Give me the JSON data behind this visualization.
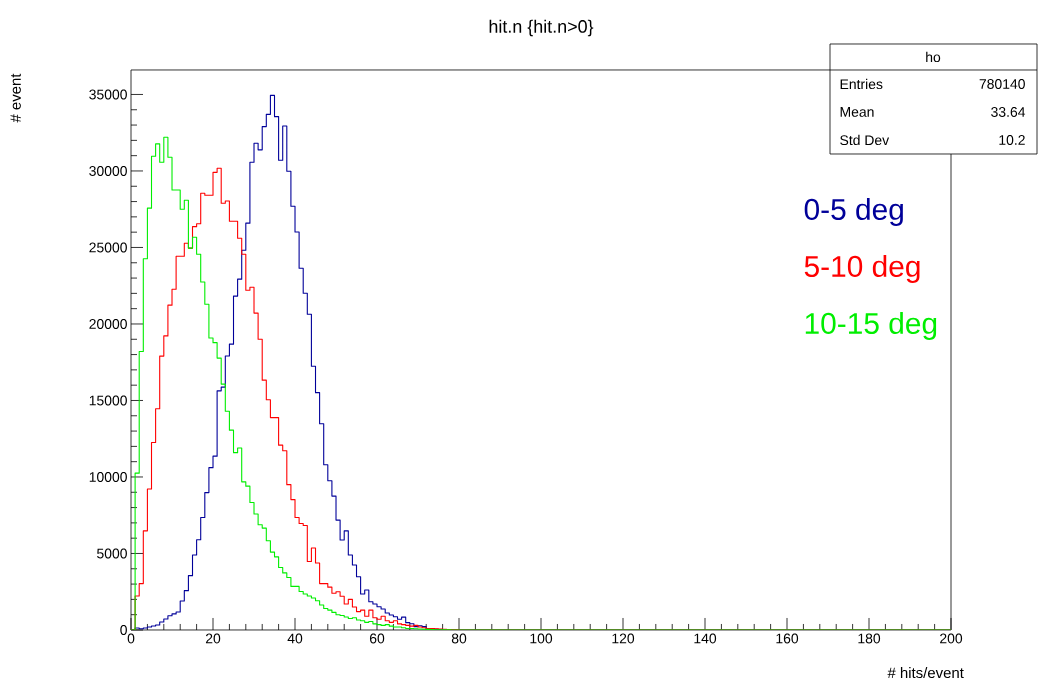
{
  "chart_data": {
    "type": "histogram",
    "title": "hit.n {hit.n>0}",
    "xlabel": "# hits/event",
    "ylabel": "# event",
    "bins": [
      0,
      1,
      2,
      3,
      4,
      5,
      6,
      7,
      8,
      9,
      10,
      11,
      12,
      13,
      14,
      15,
      16,
      17,
      18,
      19,
      20,
      21,
      22,
      23,
      24,
      25,
      26,
      27,
      28,
      29,
      30,
      31,
      32,
      33,
      34,
      35,
      36,
      37,
      38,
      39,
      40,
      41,
      42,
      43,
      44,
      45,
      46,
      47,
      48,
      49,
      50,
      51,
      52,
      53,
      54,
      55,
      56,
      57,
      58,
      59,
      60,
      61,
      62,
      63,
      64,
      65,
      66,
      67,
      68,
      69,
      70,
      71,
      72,
      73,
      74,
      75,
      76,
      77,
      78,
      79,
      80,
      200
    ],
    "series": [
      {
        "name": "0-5 deg",
        "color": "#000099",
        "values": [
          0,
          130,
          80,
          130,
          200,
          260,
          330,
          520,
          720,
          930,
          1050,
          1180,
          1890,
          2570,
          3550,
          4900,
          5900,
          7350,
          8980,
          10610,
          11360,
          15630,
          15870,
          17910,
          18680,
          21820,
          22930,
          24820,
          26590,
          30570,
          31810,
          31380,
          32900,
          33700,
          34940,
          33550,
          30700,
          32940,
          29980,
          27690,
          26010,
          23640,
          22010,
          20640,
          17240,
          15510,
          13480,
          10800,
          9750,
          8750,
          7180,
          5880,
          6480,
          4900,
          4250,
          3480,
          2350,
          2610,
          1850,
          1700,
          1520,
          1370,
          1110,
          980,
          870,
          700,
          840,
          480,
          410,
          220,
          280,
          220,
          60,
          100,
          50,
          30,
          20,
          10,
          0,
          0,
          0
        ]
      },
      {
        "name": "5-10 deg",
        "color": "#ff0000",
        "values": [
          0,
          2220,
          3030,
          6480,
          9210,
          12250,
          14460,
          17900,
          19220,
          21230,
          22270,
          24430,
          24430,
          25280,
          24960,
          26360,
          26550,
          28540,
          28410,
          28410,
          29910,
          30180,
          27890,
          28040,
          26710,
          26710,
          25600,
          24560,
          22200,
          22400,
          20710,
          19000,
          16330,
          15050,
          13880,
          13880,
          12080,
          11710,
          9500,
          8520,
          7350,
          6960,
          6830,
          4480,
          5360,
          4380,
          3030,
          3030,
          2800,
          2400,
          2500,
          2200,
          1700,
          2000,
          1500,
          1200,
          1300,
          900,
          1300,
          800,
          700,
          900,
          600,
          500,
          600,
          400,
          350,
          300,
          250,
          300,
          200,
          150,
          100,
          100,
          80,
          60,
          50,
          30,
          20,
          10,
          0
        ]
      },
      {
        "name": "10-15 deg",
        "color": "#00ee00",
        "values": [
          0,
          10250,
          18200,
          24260,
          27570,
          30960,
          31770,
          30570,
          32200,
          30900,
          28760,
          28760,
          27500,
          28090,
          24960,
          25670,
          24560,
          22740,
          21290,
          19080,
          18780,
          17770,
          16070,
          14300,
          13060,
          11590,
          11890,
          9680,
          9400,
          8330,
          7580,
          6880,
          6660,
          5830,
          5090,
          4780,
          4080,
          3730,
          3430,
          2850,
          2850,
          2520,
          2350,
          2220,
          2090,
          1910,
          1630,
          1400,
          1300,
          1150,
          1000,
          950,
          850,
          750,
          800,
          650,
          600,
          500,
          550,
          400,
          350,
          300,
          350,
          250,
          200,
          200,
          150,
          100,
          100,
          80,
          60,
          50,
          40,
          30,
          20,
          20,
          10,
          10,
          0,
          0,
          0
        ]
      }
    ],
    "xlim": [
      0,
      200
    ],
    "ylim": [
      0,
      36600
    ],
    "xticks": [
      0,
      20,
      40,
      60,
      80,
      100,
      120,
      140,
      160,
      180,
      200
    ],
    "yticks": [
      0,
      5000,
      10000,
      15000,
      20000,
      25000,
      30000,
      35000
    ],
    "annotations": [
      "ho",
      "Entries",
      "780140",
      "Mean",
      "33.64",
      "Std Dev",
      "10.2"
    ]
  }
}
